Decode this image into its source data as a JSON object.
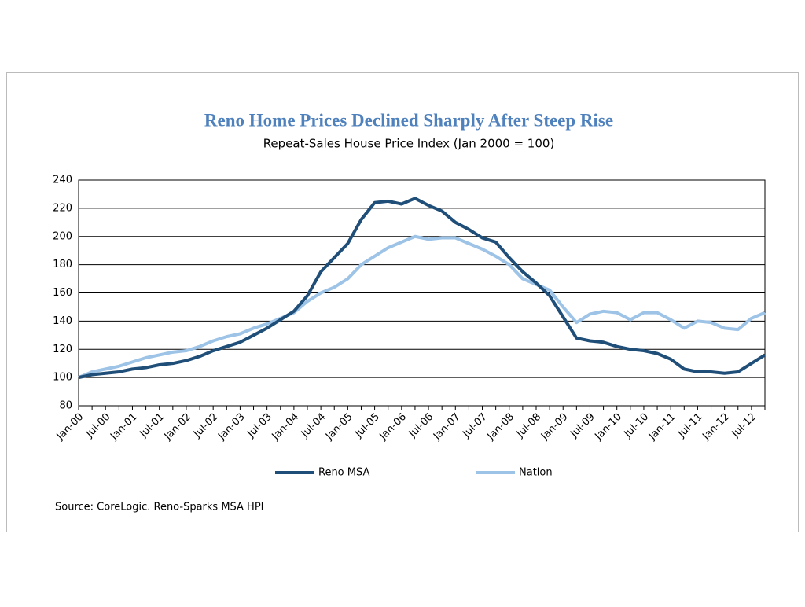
{
  "chart_data": {
    "type": "line",
    "title": "Reno Home Prices Declined Sharply After Steep Rise",
    "subtitle": "Repeat-Sales House Price Index  (Jan 2000 = 100)",
    "source": "Source: CoreLogic. Reno-Sparks MSA HPI",
    "categories": [
      "Jan-00",
      null,
      "Jul-00",
      null,
      "Jan-01",
      null,
      "Jul-01",
      null,
      "Jan-02",
      null,
      "Jul-02",
      null,
      "Jan-03",
      null,
      "Jul-03",
      null,
      "Jan-04",
      null,
      "Jul-04",
      null,
      "Jan-05",
      null,
      "Jul-05",
      null,
      "Jan-06",
      null,
      "Jul-06",
      null,
      "Jan-07",
      null,
      "Jul-07",
      null,
      "Jan-08",
      null,
      "Jul-08",
      null,
      "Jan-09",
      null,
      "Jul-09",
      null,
      "Jan-10",
      null,
      "Jul-10",
      null,
      "Jan-11",
      null,
      "Jul-11",
      null,
      "Jan-12",
      null,
      "Jul-12",
      null
    ],
    "series": [
      {
        "name": "Reno MSA",
        "color": "#1f4e79",
        "values": [
          100,
          102,
          103,
          104,
          106,
          107,
          109,
          110,
          112,
          115,
          119,
          122,
          125,
          130,
          135,
          141,
          147,
          158,
          175,
          185,
          195,
          212,
          224,
          225,
          223,
          227,
          222,
          218,
          210,
          205,
          199,
          196,
          185,
          175,
          167,
          158,
          143,
          128,
          126,
          125,
          122,
          120,
          119,
          117,
          113,
          106,
          104,
          104,
          103,
          104,
          110,
          116
        ]
      },
      {
        "name": "Nation",
        "color": "#9dc3e6",
        "values": [
          100,
          104,
          106,
          108,
          111,
          114,
          116,
          118,
          119,
          122,
          126,
          129,
          131,
          135,
          138,
          142,
          146,
          154,
          160,
          164,
          170,
          180,
          186,
          192,
          196,
          200,
          198,
          199,
          199,
          195,
          191,
          186,
          180,
          170,
          166,
          162,
          150,
          139,
          145,
          147,
          146,
          141,
          146,
          146,
          141,
          135,
          140,
          139,
          135,
          134,
          142,
          146
        ]
      }
    ],
    "ylim": [
      80,
      240
    ],
    "yticks": [
      80,
      100,
      120,
      140,
      160,
      180,
      200,
      220,
      240
    ],
    "grid": true,
    "legend": "bottom"
  }
}
